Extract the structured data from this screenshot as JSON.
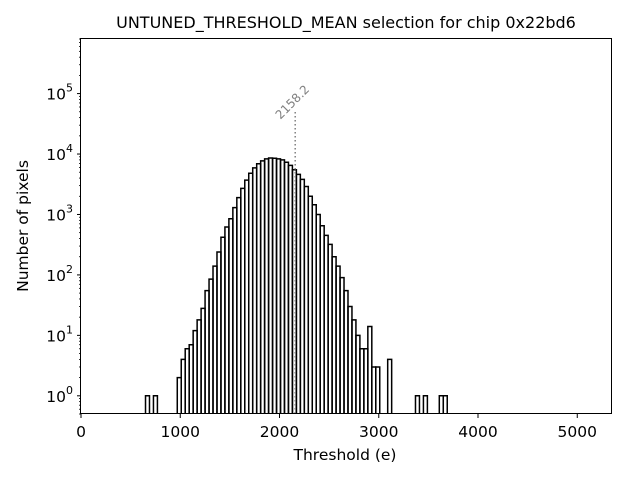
{
  "chart_data": {
    "type": "histogram",
    "title": "UNTUNED_THRESHOLD_MEAN selection for chip 0x22bd6",
    "xlabel": "Threshold (e)",
    "ylabel": "Number of pixels",
    "xscale": "linear",
    "yscale": "log",
    "xlim": [
      0,
      5350
    ],
    "ylim": [
      0.5,
      800000
    ],
    "xticks": [
      0,
      1000,
      2000,
      3000,
      4000,
      5000
    ],
    "xtick_labels": [
      "0",
      "1000",
      "2000",
      "3000",
      "4000",
      "5000"
    ],
    "yticks": [
      1,
      10,
      100,
      1000,
      10000,
      100000
    ],
    "ytick_labels": [
      {
        "base": "10",
        "exp": "0"
      },
      {
        "base": "10",
        "exp": "1"
      },
      {
        "base": "10",
        "exp": "2"
      },
      {
        "base": "10",
        "exp": "3"
      },
      {
        "base": "10",
        "exp": "4"
      },
      {
        "base": "10",
        "exp": "5"
      }
    ],
    "bin_start": 650,
    "bin_width": 40,
    "counts": [
      1,
      0,
      1,
      0,
      0,
      0,
      0,
      0,
      2,
      4,
      6,
      7,
      12,
      18,
      28,
      55,
      85,
      140,
      240,
      420,
      620,
      850,
      1300,
      1900,
      2700,
      3700,
      4800,
      5900,
      6900,
      7700,
      8300,
      8600,
      8500,
      8300,
      8000,
      7300,
      6500,
      5500,
      4600,
      3800,
      2900,
      2000,
      1450,
      1000,
      650,
      450,
      320,
      200,
      140,
      90,
      55,
      30,
      18,
      10,
      6,
      6,
      14,
      3,
      3,
      0,
      0,
      4,
      0,
      0,
      0,
      0,
      0,
      0,
      1,
      0,
      1,
      0,
      0,
      0,
      1,
      1
    ],
    "marker": {
      "value": 2158.2,
      "label": "2158.2",
      "style": "dotted",
      "color": "#808080"
    }
  }
}
